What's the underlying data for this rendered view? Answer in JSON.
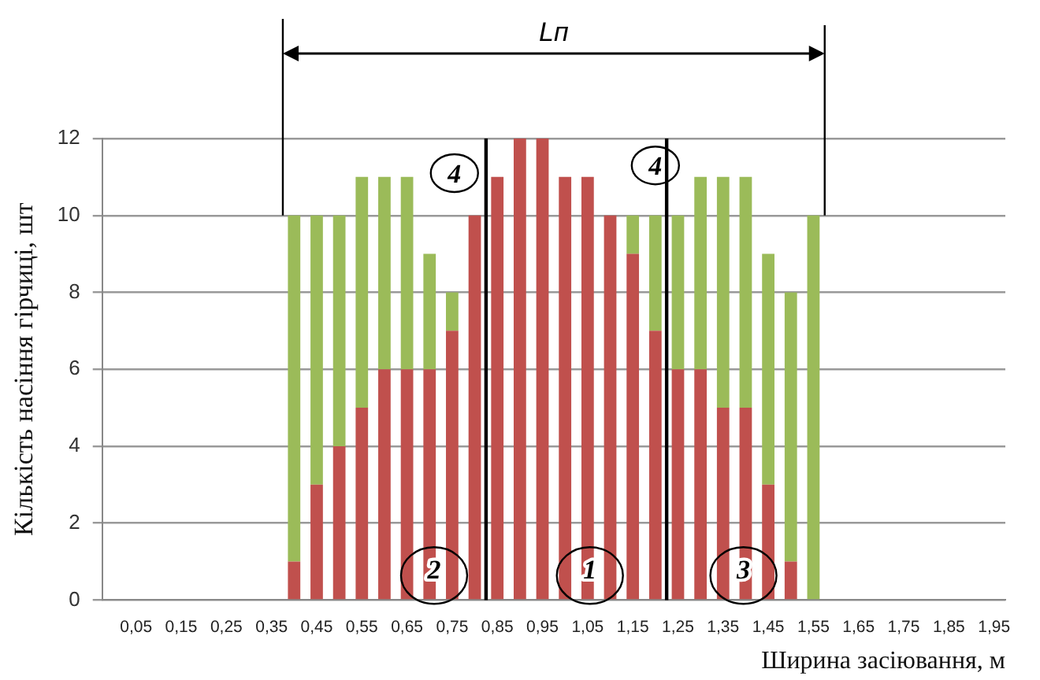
{
  "chart_data": {
    "type": "bar",
    "stacked": true,
    "xlabel": "Ширина засіювання, м",
    "ylabel": "Кількість насіння гірчиці, шт",
    "categories": [
      null,
      "0,05",
      null,
      "0,15",
      null,
      "0,25",
      null,
      "0,35",
      null,
      "0,45",
      null,
      "0,55",
      null,
      "0,65",
      null,
      "0,75",
      null,
      "0,85",
      null,
      "0,95",
      null,
      "1,05",
      null,
      "1,15",
      null,
      "1,25",
      null,
      "1,35",
      null,
      "1,45",
      null,
      "1,55",
      null,
      "1,65",
      null,
      "1,75",
      null,
      "1,85",
      null,
      "1,95"
    ],
    "series": [
      {
        "color": "#c0504d",
        "values": [
          0,
          0,
          0,
          0,
          0,
          0,
          0,
          0,
          1,
          3,
          4,
          5,
          6,
          6,
          6,
          7,
          10,
          11,
          12,
          12,
          11,
          11,
          10,
          9,
          7,
          6,
          6,
          5,
          5,
          3,
          1,
          0,
          0,
          0,
          0,
          0,
          0,
          0,
          0,
          0
        ]
      },
      {
        "color": "#9bbb59",
        "values": [
          0,
          0,
          0,
          0,
          0,
          0,
          0,
          0,
          9,
          7,
          6,
          6,
          5,
          5,
          3,
          1,
          0,
          0,
          0,
          0,
          0,
          0,
          0,
          1,
          3,
          4,
          5,
          6,
          6,
          6,
          7,
          10,
          0,
          0,
          0,
          0,
          0,
          0,
          0,
          0
        ]
      }
    ],
    "ylim": [
      0,
      12
    ],
    "yticks": [
      0,
      2,
      4,
      6,
      8,
      10,
      12
    ],
    "grid": "y",
    "legend": false,
    "annotations": [
      "Lп",
      "4",
      "4",
      "2",
      "1",
      "3"
    ]
  }
}
